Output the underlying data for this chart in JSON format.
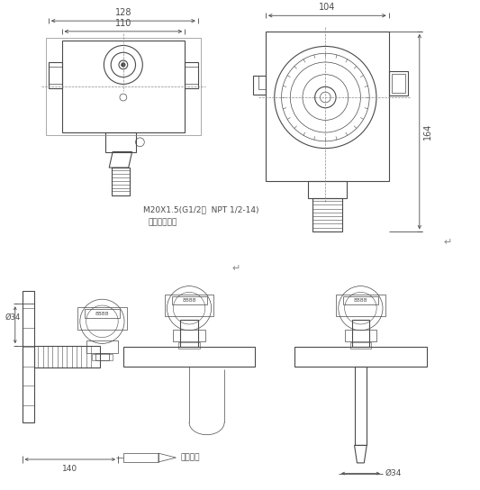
{
  "bg_color": "#ffffff",
  "line_color": "#4a4a4a",
  "dim_color": "#4a4a4a",
  "text_color": "#4a4a4a",
  "fig_width": 5.33,
  "fig_height": 5.44,
  "dpi": 100,
  "annotations": {
    "dim_128": "128",
    "dim_110": "110",
    "dim_104": "104",
    "dim_164": "164",
    "thread_note": "M20X1.5(G1/2，  NPT 1/2-14)",
    "user_note": "或由用户指定",
    "cable_label": "导气电缆",
    "dim_140": "140",
    "dim_o34_left": "Ø34",
    "dim_o34_right": "Ø34"
  }
}
